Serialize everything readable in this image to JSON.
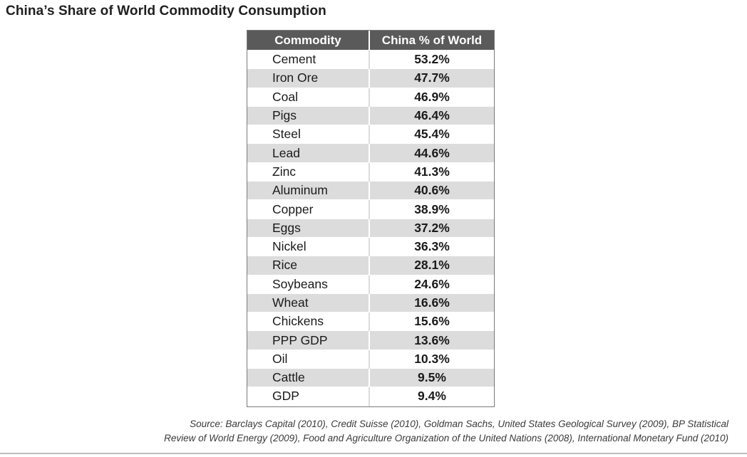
{
  "title": "China’s Share of World Commodity Consumption",
  "chart_data": {
    "type": "table",
    "columns": [
      "Commodity",
      "China % of World"
    ],
    "rows": [
      {
        "commodity": "Cement",
        "share": "53.2%"
      },
      {
        "commodity": "Iron Ore",
        "share": "47.7%"
      },
      {
        "commodity": "Coal",
        "share": "46.9%"
      },
      {
        "commodity": "Pigs",
        "share": "46.4%"
      },
      {
        "commodity": "Steel",
        "share": "45.4%"
      },
      {
        "commodity": "Lead",
        "share": "44.6%"
      },
      {
        "commodity": "Zinc",
        "share": "41.3%"
      },
      {
        "commodity": "Aluminum",
        "share": "40.6%"
      },
      {
        "commodity": "Copper",
        "share": "38.9%"
      },
      {
        "commodity": "Eggs",
        "share": "37.2%"
      },
      {
        "commodity": "Nickel",
        "share": "36.3%"
      },
      {
        "commodity": "Rice",
        "share": "28.1%"
      },
      {
        "commodity": "Soybeans",
        "share": "24.6%"
      },
      {
        "commodity": "Wheat",
        "share": "16.6%"
      },
      {
        "commodity": "Chickens",
        "share": "15.6%"
      },
      {
        "commodity": "PPP GDP",
        "share": "13.6%"
      },
      {
        "commodity": "Oil",
        "share": "10.3%"
      },
      {
        "commodity": "Cattle",
        "share": "9.5%"
      },
      {
        "commodity": "GDP",
        "share": "9.4%"
      }
    ]
  },
  "source": {
    "line1": "Source:  Barclays Capital (2010), Credit Suisse (2010), Goldman Sachs, United States Geological Survey (2009), BP Statistical",
    "line2": "Review of World Energy (2009), Food and Agriculture Organization of the United Nations (2008), International Monetary Fund (2010)"
  },
  "colors": {
    "header_bg": "#5a5a5a",
    "stripe": "#dcdcdc",
    "border": "#7a7a7a"
  }
}
